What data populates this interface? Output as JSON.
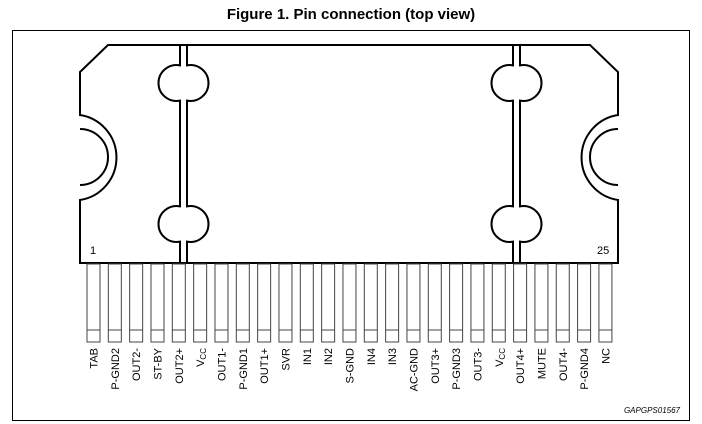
{
  "title": "Figure 1. Pin connection (top view)",
  "first_pin_number": "1",
  "last_pin_number": "25",
  "figure_code": "GAPGPS01567",
  "pins": [
    {
      "label": "TAB"
    },
    {
      "label": "P-GND2"
    },
    {
      "label": "OUT2-"
    },
    {
      "label": "ST-BY"
    },
    {
      "label": "OUT2+"
    },
    {
      "label": "V",
      "sub": "CC"
    },
    {
      "label": "OUT1-"
    },
    {
      "label": "P-GND1"
    },
    {
      "label": "OUT1+"
    },
    {
      "label": "SVR"
    },
    {
      "label": "IN1"
    },
    {
      "label": "IN2"
    },
    {
      "label": "S-GND"
    },
    {
      "label": "IN4"
    },
    {
      "label": "IN3"
    },
    {
      "label": "AC-GND"
    },
    {
      "label": "OUT3+"
    },
    {
      "label": "P-GND3"
    },
    {
      "label": "OUT3-"
    },
    {
      "label": "V",
      "sub": "CC"
    },
    {
      "label": "OUT4+"
    },
    {
      "label": "MUTE"
    },
    {
      "label": "OUT4-"
    },
    {
      "label": "P-GND4"
    },
    {
      "label": "NC"
    }
  ]
}
